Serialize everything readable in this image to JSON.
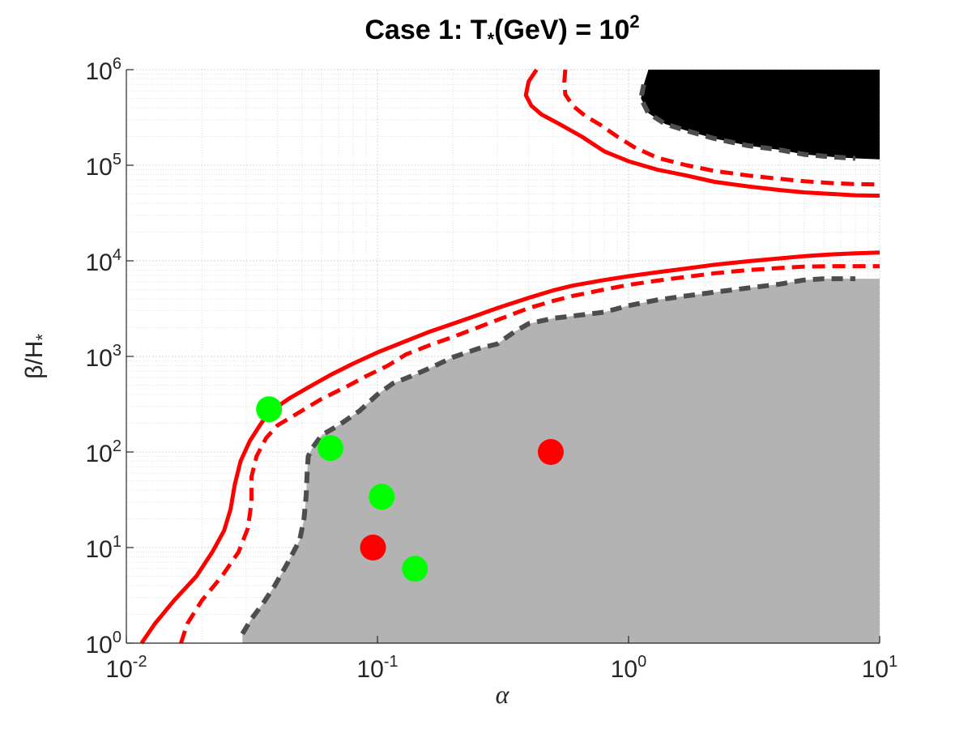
{
  "chart_data": {
    "type": "contour",
    "title": {
      "prefix": "Case 1: T",
      "subscript": "*",
      "suffix": "(GeV) = 10",
      "superscript": "2"
    },
    "xlabel": "α",
    "ylabel": {
      "main": "β/H",
      "subscript": "*"
    },
    "x_scale": "log",
    "y_scale": "log",
    "xlim": [
      0.01,
      10
    ],
    "ylim": [
      1,
      1000000
    ],
    "grid": true,
    "x_ticks": [
      {
        "value": 0.01,
        "base": "10",
        "exp": "-2"
      },
      {
        "value": 0.1,
        "base": "10",
        "exp": "-1"
      },
      {
        "value": 1,
        "base": "10",
        "exp": "0"
      },
      {
        "value": 10,
        "base": "10",
        "exp": "1"
      }
    ],
    "y_ticks": [
      {
        "value": 1,
        "base": "10",
        "exp": "0"
      },
      {
        "value": 10,
        "base": "10",
        "exp": "1"
      },
      {
        "value": 100,
        "base": "10",
        "exp": "2"
      },
      {
        "value": 1000,
        "base": "10",
        "exp": "3"
      },
      {
        "value": 10000,
        "base": "10",
        "exp": "4"
      },
      {
        "value": 100000,
        "base": "10",
        "exp": "5"
      },
      {
        "value": 1000000,
        "base": "10",
        "exp": "6"
      }
    ],
    "regions": [
      {
        "kind": "filled",
        "fill": "#b3b3b3",
        "border": "#4d4d4d",
        "boundary": [
          [
            0.029,
            1
          ],
          [
            0.029,
            1.25
          ],
          [
            0.0315,
            1.8
          ],
          [
            0.035,
            2.6
          ],
          [
            0.039,
            4
          ],
          [
            0.044,
            7
          ],
          [
            0.049,
            12
          ],
          [
            0.051,
            20
          ],
          [
            0.052,
            35
          ],
          [
            0.0525,
            60
          ],
          [
            0.053,
            90
          ],
          [
            0.055,
            110
          ],
          [
            0.06,
            150
          ],
          [
            0.07,
            190
          ],
          [
            0.085,
            270
          ],
          [
            0.1,
            400
          ],
          [
            0.115,
            520
          ],
          [
            0.14,
            640
          ],
          [
            0.17,
            800
          ],
          [
            0.2,
            980
          ],
          [
            0.25,
            1200
          ],
          [
            0.3,
            1350
          ],
          [
            0.35,
            1800
          ],
          [
            0.4,
            2200
          ],
          [
            0.5,
            2500
          ],
          [
            0.6,
            2650
          ],
          [
            0.8,
            2900
          ],
          [
            1,
            3400
          ],
          [
            1.3,
            3900
          ],
          [
            1.7,
            4300
          ],
          [
            2.2,
            4700
          ],
          [
            3,
            5200
          ],
          [
            4,
            5700
          ],
          [
            5,
            6300
          ],
          [
            6,
            6500
          ],
          [
            8,
            6500
          ],
          [
            10,
            6500
          ],
          [
            10,
            1
          ],
          [
            0.029,
            1
          ]
        ]
      },
      {
        "kind": "filled",
        "fill": "#000000",
        "border": "#4d4d4d",
        "boundary": [
          [
            1.2,
            1000000
          ],
          [
            1.15,
            700000
          ],
          [
            1.12,
            500000
          ],
          [
            1.2,
            350000
          ],
          [
            1.4,
            270000
          ],
          [
            1.7,
            230000
          ],
          [
            2.2,
            190000
          ],
          [
            3,
            160000
          ],
          [
            4,
            145000
          ],
          [
            5,
            130000
          ],
          [
            6.5,
            122000
          ],
          [
            8,
            118000
          ],
          [
            10,
            115000
          ],
          [
            10,
            1000000
          ],
          [
            1.2,
            1000000
          ]
        ]
      }
    ],
    "contours": [
      {
        "style": "solid",
        "color": "#ff0000",
        "segments": [
          [
            [
              0.0115,
              1
            ],
            [
              0.013,
              1.6
            ],
            [
              0.0155,
              2.8
            ],
            [
              0.019,
              5
            ],
            [
              0.022,
              9
            ],
            [
              0.0245,
              15
            ],
            [
              0.026,
              25
            ],
            [
              0.027,
              45
            ],
            [
              0.0285,
              80
            ],
            [
              0.031,
              130
            ],
            [
              0.034,
              190
            ],
            [
              0.037,
              260
            ],
            [
              0.045,
              370
            ],
            [
              0.055,
              500
            ],
            [
              0.065,
              640
            ],
            [
              0.08,
              840
            ],
            [
              0.1,
              1100
            ],
            [
              0.13,
              1450
            ],
            [
              0.16,
              1800
            ],
            [
              0.2,
              2200
            ],
            [
              0.25,
              2700
            ],
            [
              0.3,
              3200
            ],
            [
              0.4,
              4100
            ],
            [
              0.5,
              4900
            ],
            [
              0.6,
              5500
            ],
            [
              0.8,
              6300
            ],
            [
              1,
              6900
            ],
            [
              1.3,
              7600
            ],
            [
              1.7,
              8300
            ],
            [
              2.2,
              9100
            ],
            [
              3,
              9900
            ],
            [
              4,
              10600
            ],
            [
              5,
              11200
            ],
            [
              6.5,
              11700
            ],
            [
              8,
              12000
            ],
            [
              10,
              12200
            ]
          ],
          [
            [
              0.43,
              1000000
            ],
            [
              0.4,
              750000
            ],
            [
              0.39,
              540000
            ],
            [
              0.41,
              420000
            ],
            [
              0.45,
              340000
            ],
            [
              0.53,
              270000
            ],
            [
              0.65,
              200000
            ],
            [
              0.8,
              140000
            ],
            [
              1,
              110000
            ],
            [
              1.3,
              90000
            ],
            [
              1.7,
              78000
            ],
            [
              2.2,
              67000
            ],
            [
              3,
              60000
            ],
            [
              4,
              55000
            ],
            [
              5,
              52000
            ],
            [
              6.5,
              50000
            ],
            [
              8,
              48500
            ],
            [
              10,
              48000
            ]
          ]
        ]
      },
      {
        "style": "dashed",
        "color": "#ff0000",
        "segments": [
          [
            [
              0.0165,
              1
            ],
            [
              0.0175,
              1.6
            ],
            [
              0.02,
              2.8
            ],
            [
              0.024,
              5
            ],
            [
              0.028,
              9
            ],
            [
              0.0305,
              16
            ],
            [
              0.0315,
              30
            ],
            [
              0.0315,
              55
            ],
            [
              0.033,
              90
            ],
            [
              0.036,
              140
            ],
            [
              0.04,
              190
            ],
            [
              0.05,
              270
            ],
            [
              0.06,
              360
            ],
            [
              0.075,
              480
            ],
            [
              0.09,
              620
            ],
            [
              0.11,
              800
            ],
            [
              0.13,
              1050
            ],
            [
              0.16,
              1300
            ],
            [
              0.2,
              1600
            ],
            [
              0.25,
              2000
            ],
            [
              0.3,
              2400
            ],
            [
              0.4,
              3200
            ],
            [
              0.5,
              3800
            ],
            [
              0.6,
              4300
            ],
            [
              0.8,
              5000
            ],
            [
              1,
              5600
            ],
            [
              1.3,
              6200
            ],
            [
              1.7,
              6800
            ],
            [
              2.2,
              7400
            ],
            [
              3,
              8000
            ],
            [
              4,
              8400
            ],
            [
              5,
              8700
            ],
            [
              6.5,
              8800
            ],
            [
              8,
              8800
            ],
            [
              10,
              8800
            ]
          ],
          [
            [
              0.56,
              1000000
            ],
            [
              0.555,
              750000
            ],
            [
              0.56,
              550000
            ],
            [
              0.6,
              420000
            ],
            [
              0.67,
              330000
            ],
            [
              0.78,
              260000
            ],
            [
              0.9,
              200000
            ],
            [
              1.05,
              155000
            ],
            [
              1.3,
              120000
            ],
            [
              1.7,
              100000
            ],
            [
              2.2,
              87000
            ],
            [
              3,
              78000
            ],
            [
              4,
              72000
            ],
            [
              5,
              68000
            ],
            [
              6.5,
              65000
            ],
            [
              8,
              63500
            ],
            [
              10,
              63000
            ]
          ]
        ]
      }
    ],
    "points": [
      {
        "x": 0.037,
        "y": 280,
        "color": "#00ff00"
      },
      {
        "x": 0.065,
        "y": 110,
        "color": "#00ff00"
      },
      {
        "x": 0.104,
        "y": 34,
        "color": "#00ff00"
      },
      {
        "x": 0.096,
        "y": 10,
        "color": "#ff0000"
      },
      {
        "x": 0.141,
        "y": 6,
        "color": "#00ff00"
      },
      {
        "x": 0.49,
        "y": 100,
        "color": "#ff0000"
      }
    ]
  }
}
